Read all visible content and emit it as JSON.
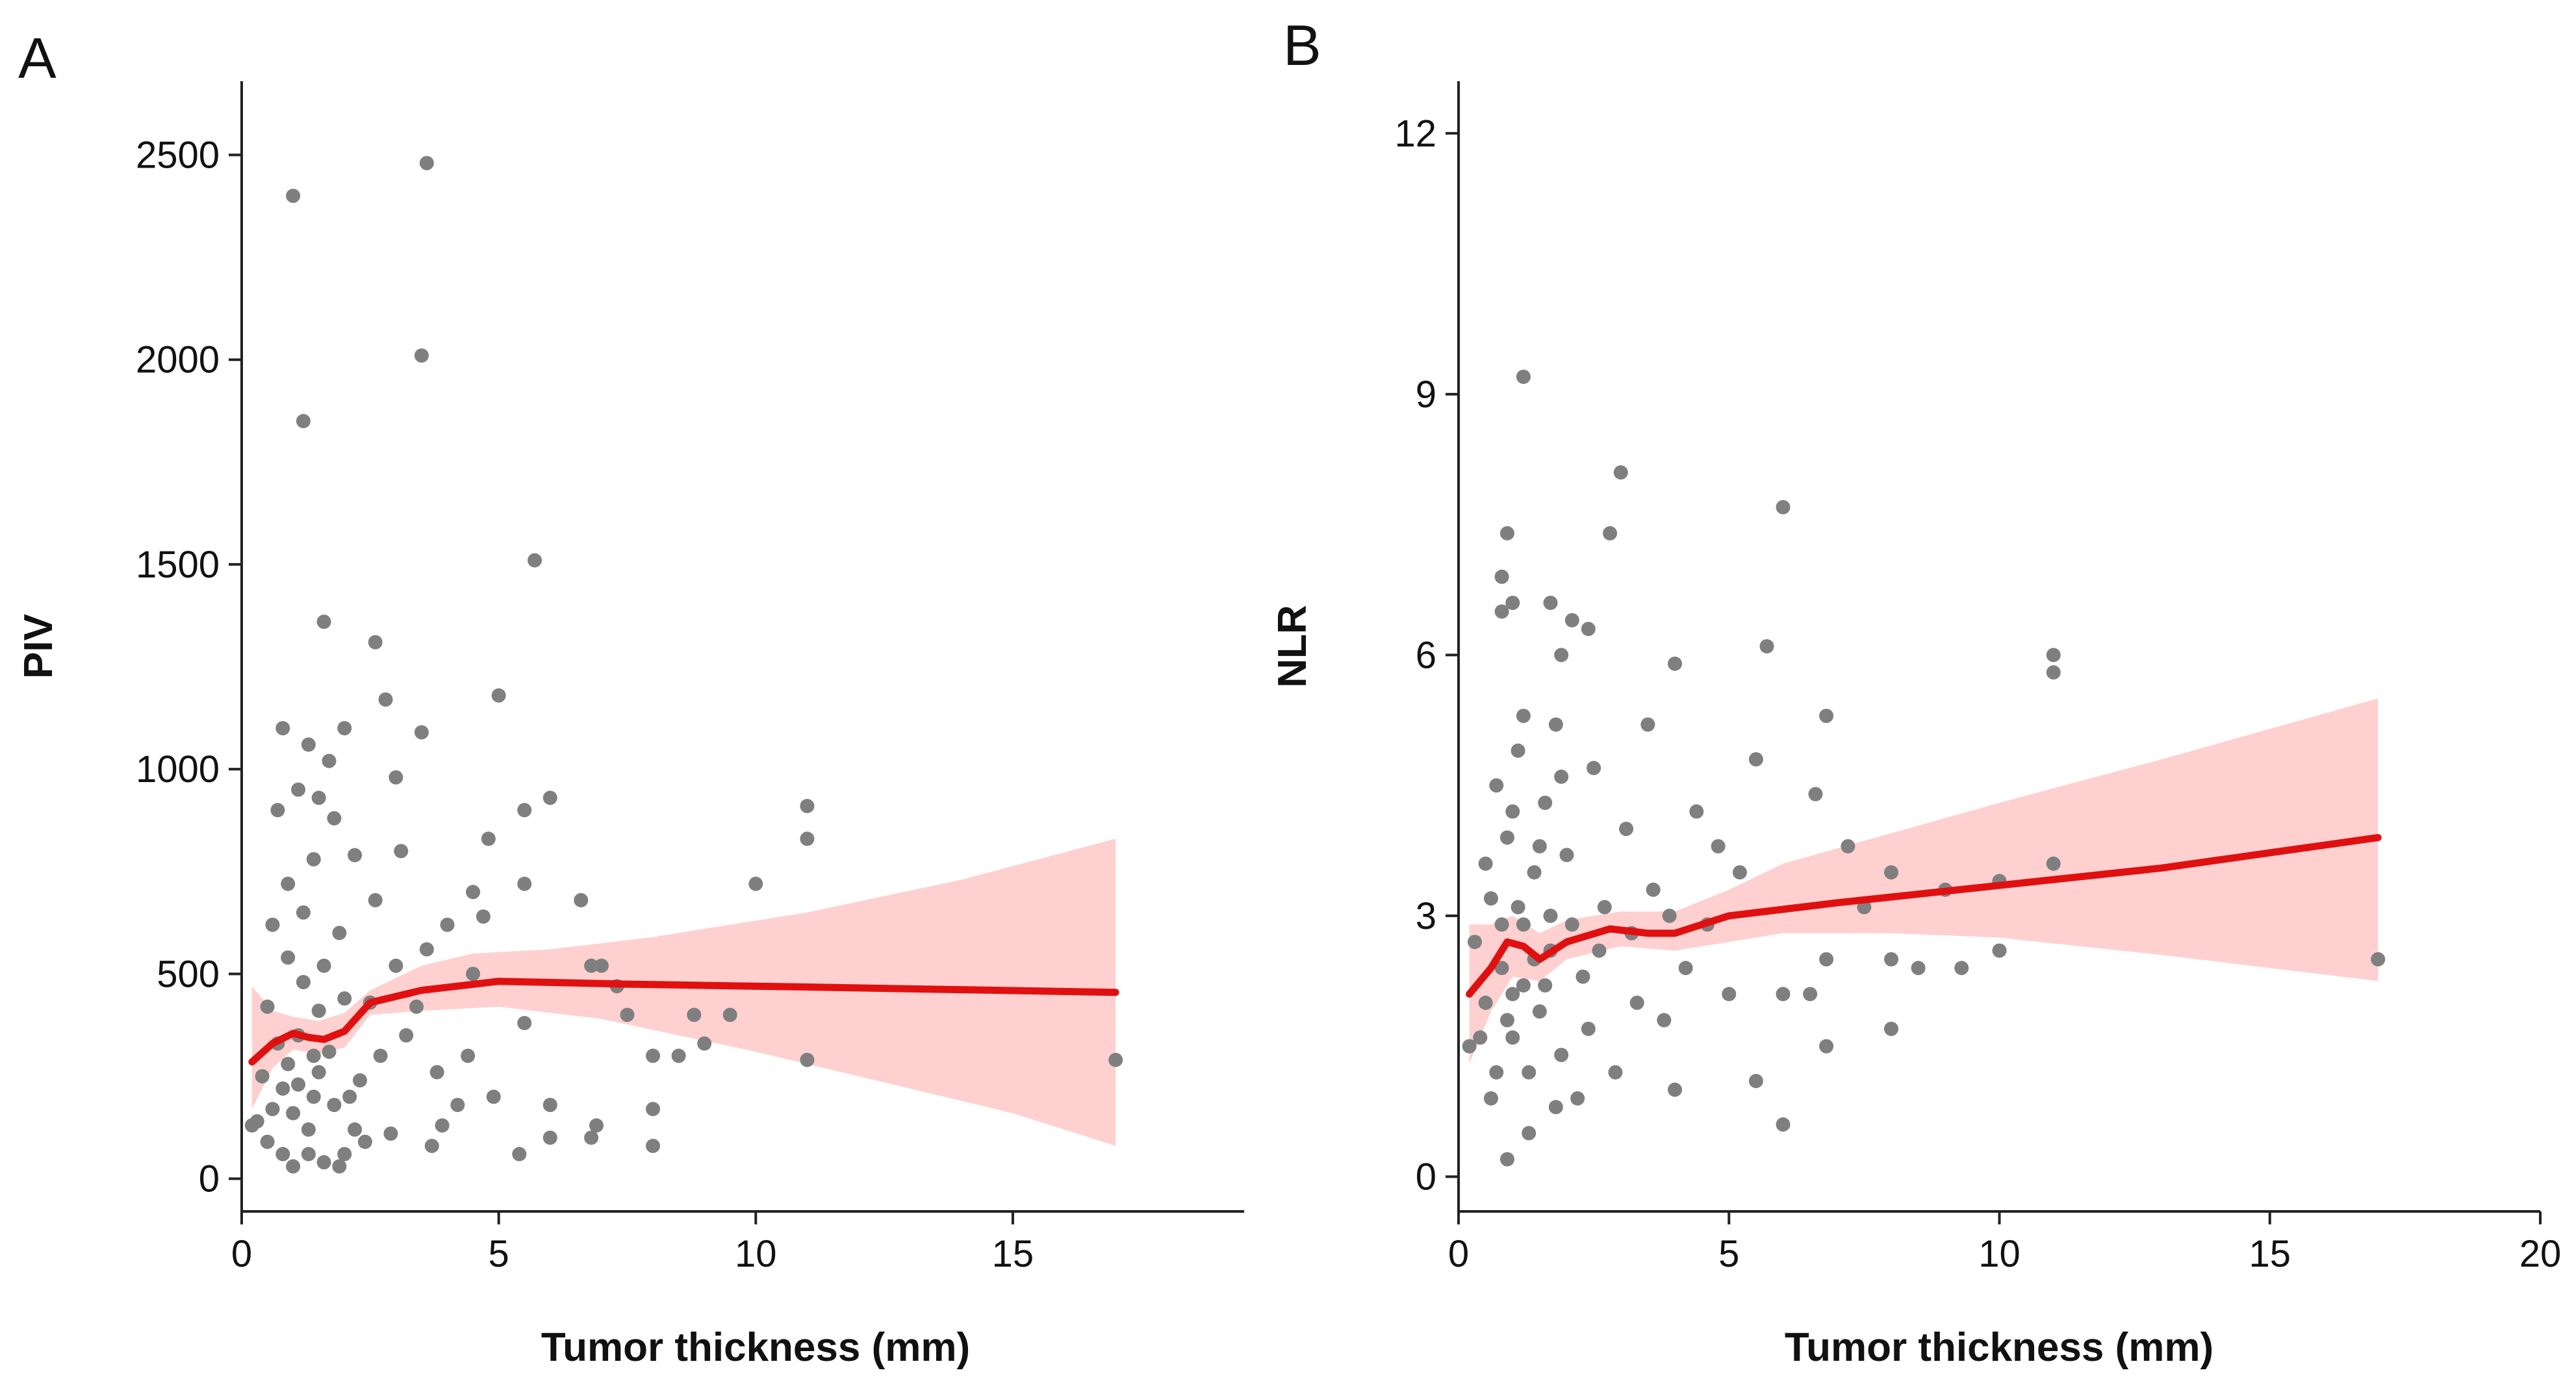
{
  "chart_data": [
    {
      "type": "scatter",
      "panel_label": "A",
      "xlabel": "Tumor thickness (mm)",
      "ylabel": "PIV",
      "xlim": [
        0,
        19.5
      ],
      "ylim": [
        -80,
        2680
      ],
      "xticks": [
        0,
        5,
        10,
        15
      ],
      "yticks": [
        0,
        500,
        1000,
        1500,
        2000,
        2500
      ],
      "grid": false,
      "colors": {
        "points": "#7f7f7f",
        "trend": "#e01010",
        "band": "#ffc8c8"
      },
      "points": [
        [
          1.0,
          2400
        ],
        [
          3.6,
          2480
        ],
        [
          3.5,
          2010
        ],
        [
          1.2,
          1850
        ],
        [
          5.7,
          1510
        ],
        [
          1.6,
          1360
        ],
        [
          2.6,
          1310
        ],
        [
          5.0,
          1180
        ],
        [
          2.8,
          1170
        ],
        [
          0.8,
          1100
        ],
        [
          2.0,
          1100
        ],
        [
          3.5,
          1090
        ],
        [
          1.3,
          1060
        ],
        [
          1.7,
          1020
        ],
        [
          3.0,
          980
        ],
        [
          6.0,
          930
        ],
        [
          5.5,
          900
        ],
        [
          11.0,
          910
        ],
        [
          11.0,
          830
        ],
        [
          4.8,
          830
        ],
        [
          3.1,
          800
        ],
        [
          2.2,
          790
        ],
        [
          4.5,
          700
        ],
        [
          6.6,
          680
        ],
        [
          10.0,
          720
        ],
        [
          4.7,
          640
        ],
        [
          5.5,
          720
        ],
        [
          7.0,
          520
        ],
        [
          6.8,
          520
        ],
        [
          7.3,
          470
        ],
        [
          9.5,
          400
        ],
        [
          8.8,
          400
        ],
        [
          7.5,
          400
        ],
        [
          8.0,
          300
        ],
        [
          8.5,
          300
        ],
        [
          9.0,
          330
        ],
        [
          11.0,
          290
        ],
        [
          17.0,
          290
        ],
        [
          5.5,
          380
        ],
        [
          6.0,
          180
        ],
        [
          6.8,
          100
        ],
        [
          6.0,
          100
        ],
        [
          5.4,
          60
        ],
        [
          8.0,
          80
        ],
        [
          8.0,
          170
        ],
        [
          6.9,
          130
        ],
        [
          4.5,
          500
        ],
        [
          3.8,
          260
        ],
        [
          4.2,
          180
        ],
        [
          3.9,
          130
        ],
        [
          3.7,
          80
        ],
        [
          3.2,
          350
        ],
        [
          3.0,
          520
        ],
        [
          2.6,
          680
        ],
        [
          2.5,
          430
        ],
        [
          2.3,
          240
        ],
        [
          2.2,
          120
        ],
        [
          2.0,
          60
        ],
        [
          1.8,
          880
        ],
        [
          1.9,
          600
        ],
        [
          1.6,
          520
        ],
        [
          1.5,
          930
        ],
        [
          1.4,
          780
        ],
        [
          1.1,
          950
        ],
        [
          0.9,
          720
        ],
        [
          0.7,
          900
        ],
        [
          0.6,
          620
        ],
        [
          0.5,
          420
        ],
        [
          0.4,
          250
        ],
        [
          0.3,
          140
        ],
        [
          0.2,
          130
        ],
        [
          0.5,
          90
        ],
        [
          0.8,
          60
        ],
        [
          1.0,
          30
        ],
        [
          1.3,
          60
        ],
        [
          1.6,
          40
        ],
        [
          1.9,
          30
        ],
        [
          2.1,
          200
        ],
        [
          2.4,
          90
        ],
        [
          2.7,
          300
        ],
        [
          2.9,
          110
        ],
        [
          3.4,
          420
        ],
        [
          3.6,
          560
        ],
        [
          4.0,
          620
        ],
        [
          4.4,
          300
        ],
        [
          4.9,
          200
        ],
        [
          1.2,
          480
        ],
        [
          1.1,
          350
        ],
        [
          0.9,
          280
        ],
        [
          1.4,
          200
        ],
        [
          0.7,
          330
        ],
        [
          1.5,
          260
        ],
        [
          1.7,
          310
        ],
        [
          1.0,
          160
        ],
        [
          1.3,
          120
        ],
        [
          0.9,
          540
        ],
        [
          1.2,
          650
        ],
        [
          1.5,
          410
        ],
        [
          0.8,
          220
        ],
        [
          1.8,
          180
        ],
        [
          2.0,
          440
        ],
        [
          1.1,
          230
        ],
        [
          0.6,
          170
        ],
        [
          1.4,
          300
        ]
      ],
      "trend": [
        [
          0.2,
          285
        ],
        [
          0.6,
          330
        ],
        [
          1.0,
          355
        ],
        [
          1.3,
          345
        ],
        [
          1.6,
          340
        ],
        [
          2.0,
          360
        ],
        [
          2.5,
          430
        ],
        [
          3.5,
          460
        ],
        [
          5.0,
          482
        ],
        [
          7.5,
          475
        ],
        [
          11.0,
          468
        ],
        [
          17.0,
          455
        ]
      ],
      "band_upper": [
        [
          0.2,
          470
        ],
        [
          0.6,
          410
        ],
        [
          1.0,
          395
        ],
        [
          1.5,
          385
        ],
        [
          2.0,
          405
        ],
        [
          2.5,
          460
        ],
        [
          3.5,
          520
        ],
        [
          4.5,
          550
        ],
        [
          6.0,
          560
        ],
        [
          8.0,
          590
        ],
        [
          11.0,
          650
        ],
        [
          14.0,
          730
        ],
        [
          17.0,
          830
        ]
      ],
      "band_lower": [
        [
          0.2,
          170
        ],
        [
          0.6,
          270
        ],
        [
          1.0,
          315
        ],
        [
          1.5,
          305
        ],
        [
          2.0,
          320
        ],
        [
          2.5,
          400
        ],
        [
          3.5,
          410
        ],
        [
          5.0,
          420
        ],
        [
          7.0,
          390
        ],
        [
          10.0,
          310
        ],
        [
          13.0,
          220
        ],
        [
          15.0,
          160
        ],
        [
          17.0,
          80
        ]
      ]
    },
    {
      "type": "scatter",
      "panel_label": "B",
      "xlabel": "Tumor thickness (mm)",
      "ylabel": "NLR",
      "xlim": [
        0,
        20
      ],
      "ylim": [
        -0.4,
        12.6
      ],
      "xticks": [
        0,
        5,
        10,
        15,
        20
      ],
      "yticks": [
        0,
        3,
        6,
        9,
        12
      ],
      "grid": false,
      "colors": {
        "points": "#7f7f7f",
        "trend": "#e01010",
        "band": "#ffc8c8"
      },
      "points": [
        [
          1.2,
          9.2
        ],
        [
          3.0,
          8.1
        ],
        [
          6.0,
          7.7
        ],
        [
          2.8,
          7.4
        ],
        [
          0.9,
          7.4
        ],
        [
          0.8,
          6.9
        ],
        [
          0.8,
          6.5
        ],
        [
          1.0,
          6.6
        ],
        [
          1.7,
          6.6
        ],
        [
          2.1,
          6.4
        ],
        [
          2.4,
          6.3
        ],
        [
          1.9,
          6.0
        ],
        [
          4.0,
          5.9
        ],
        [
          5.7,
          6.1
        ],
        [
          11.0,
          6.0
        ],
        [
          11.0,
          5.8
        ],
        [
          6.8,
          5.3
        ],
        [
          5.5,
          4.8
        ],
        [
          6.6,
          4.4
        ],
        [
          7.2,
          3.8
        ],
        [
          8.0,
          3.5
        ],
        [
          9.0,
          3.3
        ],
        [
          10.0,
          3.4
        ],
        [
          11.0,
          3.6
        ],
        [
          17.0,
          2.5
        ],
        [
          8.0,
          2.5
        ],
        [
          8.5,
          2.4
        ],
        [
          9.3,
          2.4
        ],
        [
          10.0,
          2.6
        ],
        [
          6.8,
          2.5
        ],
        [
          6.5,
          2.1
        ],
        [
          6.8,
          1.5
        ],
        [
          7.5,
          3.1
        ],
        [
          8.0,
          1.7
        ],
        [
          6.0,
          2.1
        ],
        [
          6.0,
          0.6
        ],
        [
          5.5,
          1.1
        ],
        [
          5.0,
          2.1
        ],
        [
          4.8,
          3.8
        ],
        [
          4.4,
          4.2
        ],
        [
          4.2,
          2.4
        ],
        [
          4.0,
          1.0
        ],
        [
          3.8,
          1.8
        ],
        [
          3.6,
          3.3
        ],
        [
          3.5,
          5.2
        ],
        [
          3.3,
          2.0
        ],
        [
          3.1,
          4.0
        ],
        [
          2.9,
          1.2
        ],
        [
          2.7,
          3.1
        ],
        [
          2.5,
          4.7
        ],
        [
          2.3,
          2.3
        ],
        [
          2.2,
          0.9
        ],
        [
          2.0,
          3.7
        ],
        [
          1.9,
          1.4
        ],
        [
          1.8,
          5.2
        ],
        [
          1.7,
          2.6
        ],
        [
          1.6,
          4.3
        ],
        [
          1.5,
          1.9
        ],
        [
          1.4,
          3.5
        ],
        [
          1.3,
          0.5
        ],
        [
          1.2,
          2.2
        ],
        [
          1.1,
          4.9
        ],
        [
          1.0,
          1.6
        ],
        [
          0.9,
          3.9
        ],
        [
          0.9,
          0.2
        ],
        [
          0.8,
          2.4
        ],
        [
          0.7,
          1.2
        ],
        [
          0.6,
          3.2
        ],
        [
          0.5,
          2.0
        ],
        [
          0.4,
          1.6
        ],
        [
          0.3,
          2.7
        ],
        [
          0.2,
          1.5
        ],
        [
          1.2,
          2.9
        ],
        [
          1.0,
          2.1
        ],
        [
          1.4,
          2.5
        ],
        [
          0.8,
          2.9
        ],
        [
          1.1,
          3.1
        ],
        [
          1.6,
          2.2
        ],
        [
          0.9,
          1.8
        ],
        [
          1.3,
          1.2
        ],
        [
          1.5,
          3.8
        ],
        [
          0.7,
          4.5
        ],
        [
          1.8,
          0.8
        ],
        [
          2.1,
          2.9
        ],
        [
          2.4,
          1.7
        ],
        [
          1.2,
          5.3
        ],
        [
          0.6,
          0.9
        ],
        [
          1.0,
          4.2
        ],
        [
          1.7,
          3.0
        ],
        [
          2.6,
          2.6
        ],
        [
          3.2,
          2.8
        ],
        [
          3.9,
          3.0
        ],
        [
          4.6,
          2.9
        ],
        [
          5.2,
          3.5
        ],
        [
          0.5,
          3.6
        ],
        [
          1.9,
          4.6
        ]
      ],
      "trend": [
        [
          0.2,
          2.1
        ],
        [
          0.6,
          2.4
        ],
        [
          0.9,
          2.7
        ],
        [
          1.2,
          2.65
        ],
        [
          1.5,
          2.5
        ],
        [
          2.0,
          2.7
        ],
        [
          2.8,
          2.85
        ],
        [
          3.5,
          2.8
        ],
        [
          4.0,
          2.8
        ],
        [
          5.0,
          3.0
        ],
        [
          7.0,
          3.15
        ],
        [
          10.0,
          3.35
        ],
        [
          13.0,
          3.55
        ],
        [
          17.0,
          3.9
        ]
      ],
      "band_upper": [
        [
          0.2,
          2.9
        ],
        [
          0.6,
          2.9
        ],
        [
          1.0,
          3.0
        ],
        [
          1.5,
          2.8
        ],
        [
          2.0,
          2.95
        ],
        [
          3.0,
          3.05
        ],
        [
          4.0,
          3.05
        ],
        [
          5.0,
          3.3
        ],
        [
          6.0,
          3.6
        ],
        [
          8.0,
          3.95
        ],
        [
          10.0,
          4.3
        ],
        [
          13.0,
          4.8
        ],
        [
          17.0,
          5.5
        ]
      ],
      "band_lower": [
        [
          0.2,
          1.3
        ],
        [
          0.6,
          1.9
        ],
        [
          1.0,
          2.3
        ],
        [
          1.5,
          2.25
        ],
        [
          2.0,
          2.5
        ],
        [
          3.0,
          2.65
        ],
        [
          4.0,
          2.6
        ],
        [
          5.0,
          2.7
        ],
        [
          6.0,
          2.8
        ],
        [
          8.0,
          2.8
        ],
        [
          10.0,
          2.75
        ],
        [
          13.0,
          2.55
        ],
        [
          17.0,
          2.25
        ]
      ]
    }
  ]
}
